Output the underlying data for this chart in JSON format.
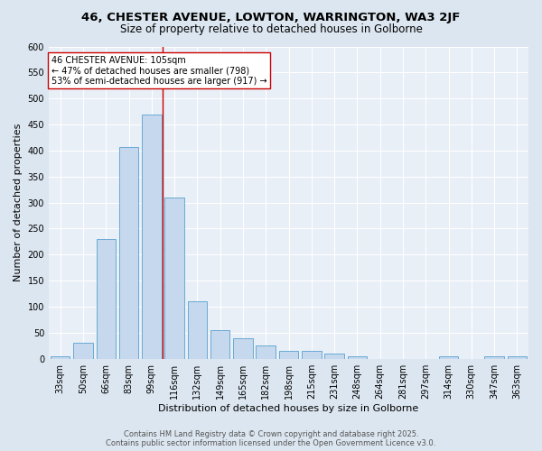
{
  "title1": "46, CHESTER AVENUE, LOWTON, WARRINGTON, WA3 2JF",
  "title2": "Size of property relative to detached houses in Golborne",
  "xlabel": "Distribution of detached houses by size in Golborne",
  "ylabel": "Number of detached properties",
  "categories": [
    "33sqm",
    "50sqm",
    "66sqm",
    "83sqm",
    "99sqm",
    "116sqm",
    "132sqm",
    "149sqm",
    "165sqm",
    "182sqm",
    "198sqm",
    "215sqm",
    "231sqm",
    "248sqm",
    "264sqm",
    "281sqm",
    "297sqm",
    "314sqm",
    "330sqm",
    "347sqm",
    "363sqm"
  ],
  "values": [
    5,
    30,
    230,
    407,
    470,
    310,
    110,
    55,
    40,
    25,
    15,
    15,
    10,
    4,
    0,
    0,
    0,
    5,
    0,
    4,
    4
  ],
  "bar_color": "#c5d8ed",
  "bar_edge_color": "#6aaad4",
  "bar_linewidth": 0.7,
  "vline_x": 4.5,
  "vline_color": "#cc0000",
  "annotation_text": "46 CHESTER AVENUE: 105sqm\n← 47% of detached houses are smaller (798)\n53% of semi-detached houses are larger (917) →",
  "annotation_box_color": "#ffffff",
  "annotation_box_edge": "#cc0000",
  "ylim": [
    0,
    600
  ],
  "yticks": [
    0,
    50,
    100,
    150,
    200,
    250,
    300,
    350,
    400,
    450,
    500,
    550,
    600
  ],
  "bg_color": "#dce6f0",
  "plot_bg_color": "#e8eff7",
  "footer": "Contains HM Land Registry data © Crown copyright and database right 2025.\nContains public sector information licensed under the Open Government Licence v3.0.",
  "title1_fontsize": 9.5,
  "title2_fontsize": 8.5,
  "xlabel_fontsize": 8,
  "ylabel_fontsize": 8,
  "tick_fontsize": 7,
  "footer_fontsize": 6,
  "annot_fontsize": 7
}
